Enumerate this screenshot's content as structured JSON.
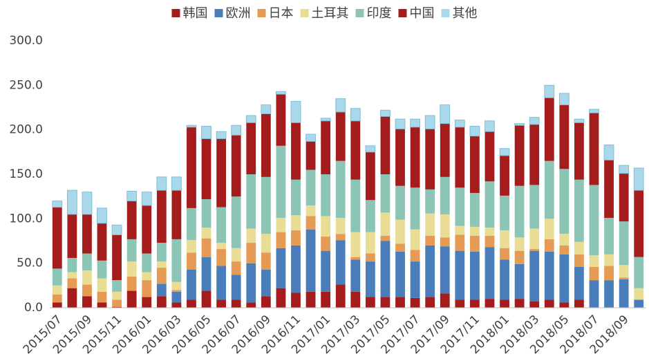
{
  "chart_data": {
    "type": "stacked_bar",
    "categories": [
      "2015/07",
      null,
      "2015/09",
      null,
      "2015/11",
      null,
      "2016/01",
      null,
      "2016/03",
      null,
      "2016/05",
      null,
      "2016/07",
      null,
      "2016/09",
      null,
      "2016/11",
      null,
      "2017/01",
      null,
      "2017/03",
      null,
      "2017/05",
      null,
      "2017/07",
      null,
      "2017/09",
      null,
      "2017/11",
      null,
      "2018/01",
      null,
      "2018/03",
      null,
      "2018/05",
      null,
      "2018/07",
      null,
      "2018/09",
      null
    ],
    "series": [
      {
        "name": "韩国",
        "color": "#a51c1c",
        "values": [
          6,
          22,
          13,
          6,
          1,
          19,
          12,
          13,
          6,
          9,
          19,
          9,
          9,
          6,
          13,
          22,
          17,
          18,
          18,
          26,
          18,
          12,
          12,
          12,
          11,
          12,
          16,
          9,
          9,
          10,
          9,
          10,
          7,
          9,
          6,
          9,
          0,
          0,
          0,
          0
        ]
      },
      {
        "name": "欧洲",
        "color": "#4a7ebb",
        "values": [
          0,
          0,
          0,
          0,
          0,
          0,
          0,
          14,
          12,
          34,
          38,
          38,
          28,
          44,
          30,
          45,
          53,
          70,
          46,
          50,
          36,
          40,
          63,
          51,
          41,
          58,
          53,
          55,
          54,
          58,
          45,
          39,
          57,
          54,
          54,
          37,
          31,
          31,
          32,
          9
        ]
      },
      {
        "name": "日本",
        "color": "#e59b53",
        "values": [
          9,
          11,
          13,
          12,
          8,
          16,
          19,
          18,
          2,
          19,
          21,
          19,
          15,
          23,
          19,
          18,
          17,
          15,
          16,
          7,
          3,
          9,
          6,
          9,
          13,
          11,
          10,
          18,
          18,
          13,
          13,
          15,
          2,
          14,
          10,
          14,
          15,
          16,
          2,
          0
        ]
      },
      {
        "name": "土耳其",
        "color": "#e9dd96",
        "values": [
          10,
          7,
          16,
          15,
          9,
          17,
          9,
          7,
          9,
          14,
          12,
          7,
          15,
          16,
          21,
          16,
          17,
          12,
          23,
          18,
          28,
          24,
          26,
          27,
          23,
          25,
          26,
          10,
          10,
          9,
          20,
          15,
          23,
          23,
          13,
          14,
          13,
          13,
          14,
          13
        ]
      },
      {
        "name": "印度",
        "color": "#8cc5b5",
        "values": [
          19,
          16,
          19,
          20,
          13,
          25,
          21,
          21,
          48,
          36,
          32,
          40,
          58,
          61,
          64,
          81,
          40,
          40,
          47,
          64,
          59,
          36,
          43,
          38,
          47,
          27,
          42,
          43,
          38,
          52,
          39,
          58,
          49,
          65,
          73,
          70,
          79,
          41,
          49,
          35
        ]
      },
      {
        "name": "中国",
        "color": "#a51c1c",
        "values": [
          69,
          49,
          44,
          42,
          51,
          43,
          54,
          59,
          55,
          91,
          68,
          77,
          69,
          58,
          71,
          58,
          64,
          32,
          60,
          55,
          66,
          54,
          65,
          64,
          68,
          68,
          60,
          68,
          64,
          56,
          45,
          68,
          68,
          71,
          72,
          64,
          81,
          65,
          54,
          75
        ]
      },
      {
        "name": "其他",
        "color": "#a8d8ea",
        "values": [
          7,
          27,
          25,
          17,
          11,
          11,
          15,
          15,
          15,
          2,
          14,
          8,
          11,
          8,
          10,
          3,
          24,
          8,
          3,
          15,
          14,
          7,
          7,
          11,
          9,
          15,
          21,
          8,
          11,
          12,
          8,
          2,
          8,
          14,
          13,
          4,
          4,
          17,
          9,
          25
        ]
      }
    ],
    "ylim": [
      0,
      300
    ],
    "yticks": [
      {
        "value": 0,
        "label": "0.0"
      },
      {
        "value": 50,
        "label": "50.0"
      },
      {
        "value": 100,
        "label": "100.0"
      },
      {
        "value": 150,
        "label": "150.0"
      },
      {
        "value": 200,
        "label": "200.0"
      },
      {
        "value": 250,
        "label": "250.0"
      },
      {
        "value": 300,
        "label": "300.0"
      }
    ],
    "legend": "top"
  }
}
